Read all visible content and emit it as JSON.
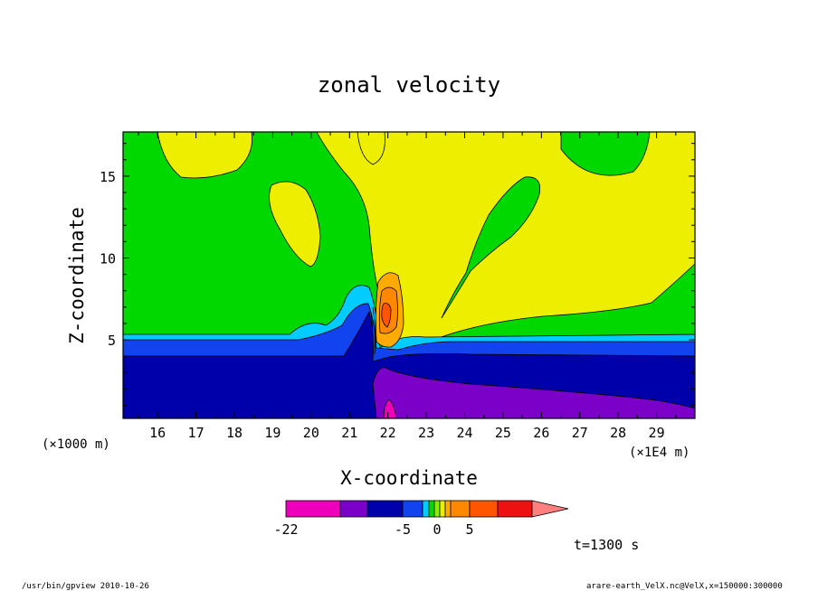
{
  "chart_data": {
    "type": "heatmap",
    "title": "zonal velocity",
    "xlabel": "X-coordinate",
    "ylabel": "Z-coordinate",
    "x_unit_left": "(×1000 m)",
    "x_unit_right": "(×1E4 m)",
    "x_ticks": [
      "16",
      "17",
      "18",
      "19",
      "20",
      "21",
      "22",
      "23",
      "24",
      "25",
      "26",
      "27",
      "28",
      "29"
    ],
    "y_ticks": [
      "5",
      "10",
      "15"
    ],
    "xlim": [
      15.1,
      30.0
    ],
    "ylim": [
      0.2,
      17.7
    ],
    "contour_levels": [
      -22,
      -18,
      -15,
      -11,
      -5,
      -3,
      -2,
      -1,
      0,
      1,
      2,
      5,
      8,
      11,
      15
    ],
    "fill_colors": [
      "#ee00bb",
      "#7b00c8",
      "#0000aa",
      "#1144ee",
      "#00ccff",
      "#00d800",
      "#88ee00",
      "#eeee00",
      "#ffaa00",
      "#ff8800",
      "#ff5500",
      "#ee1111",
      "#ff7f7f"
    ],
    "colorbar_labels": [
      "-22",
      "-5",
      "0",
      "5"
    ],
    "time_label": "t=1300 s",
    "footer_left": "/usr/bin/gpview  2010-10-26",
    "footer_right": "arare-earth_VelX.nc@VelX,x=150000:300000"
  }
}
